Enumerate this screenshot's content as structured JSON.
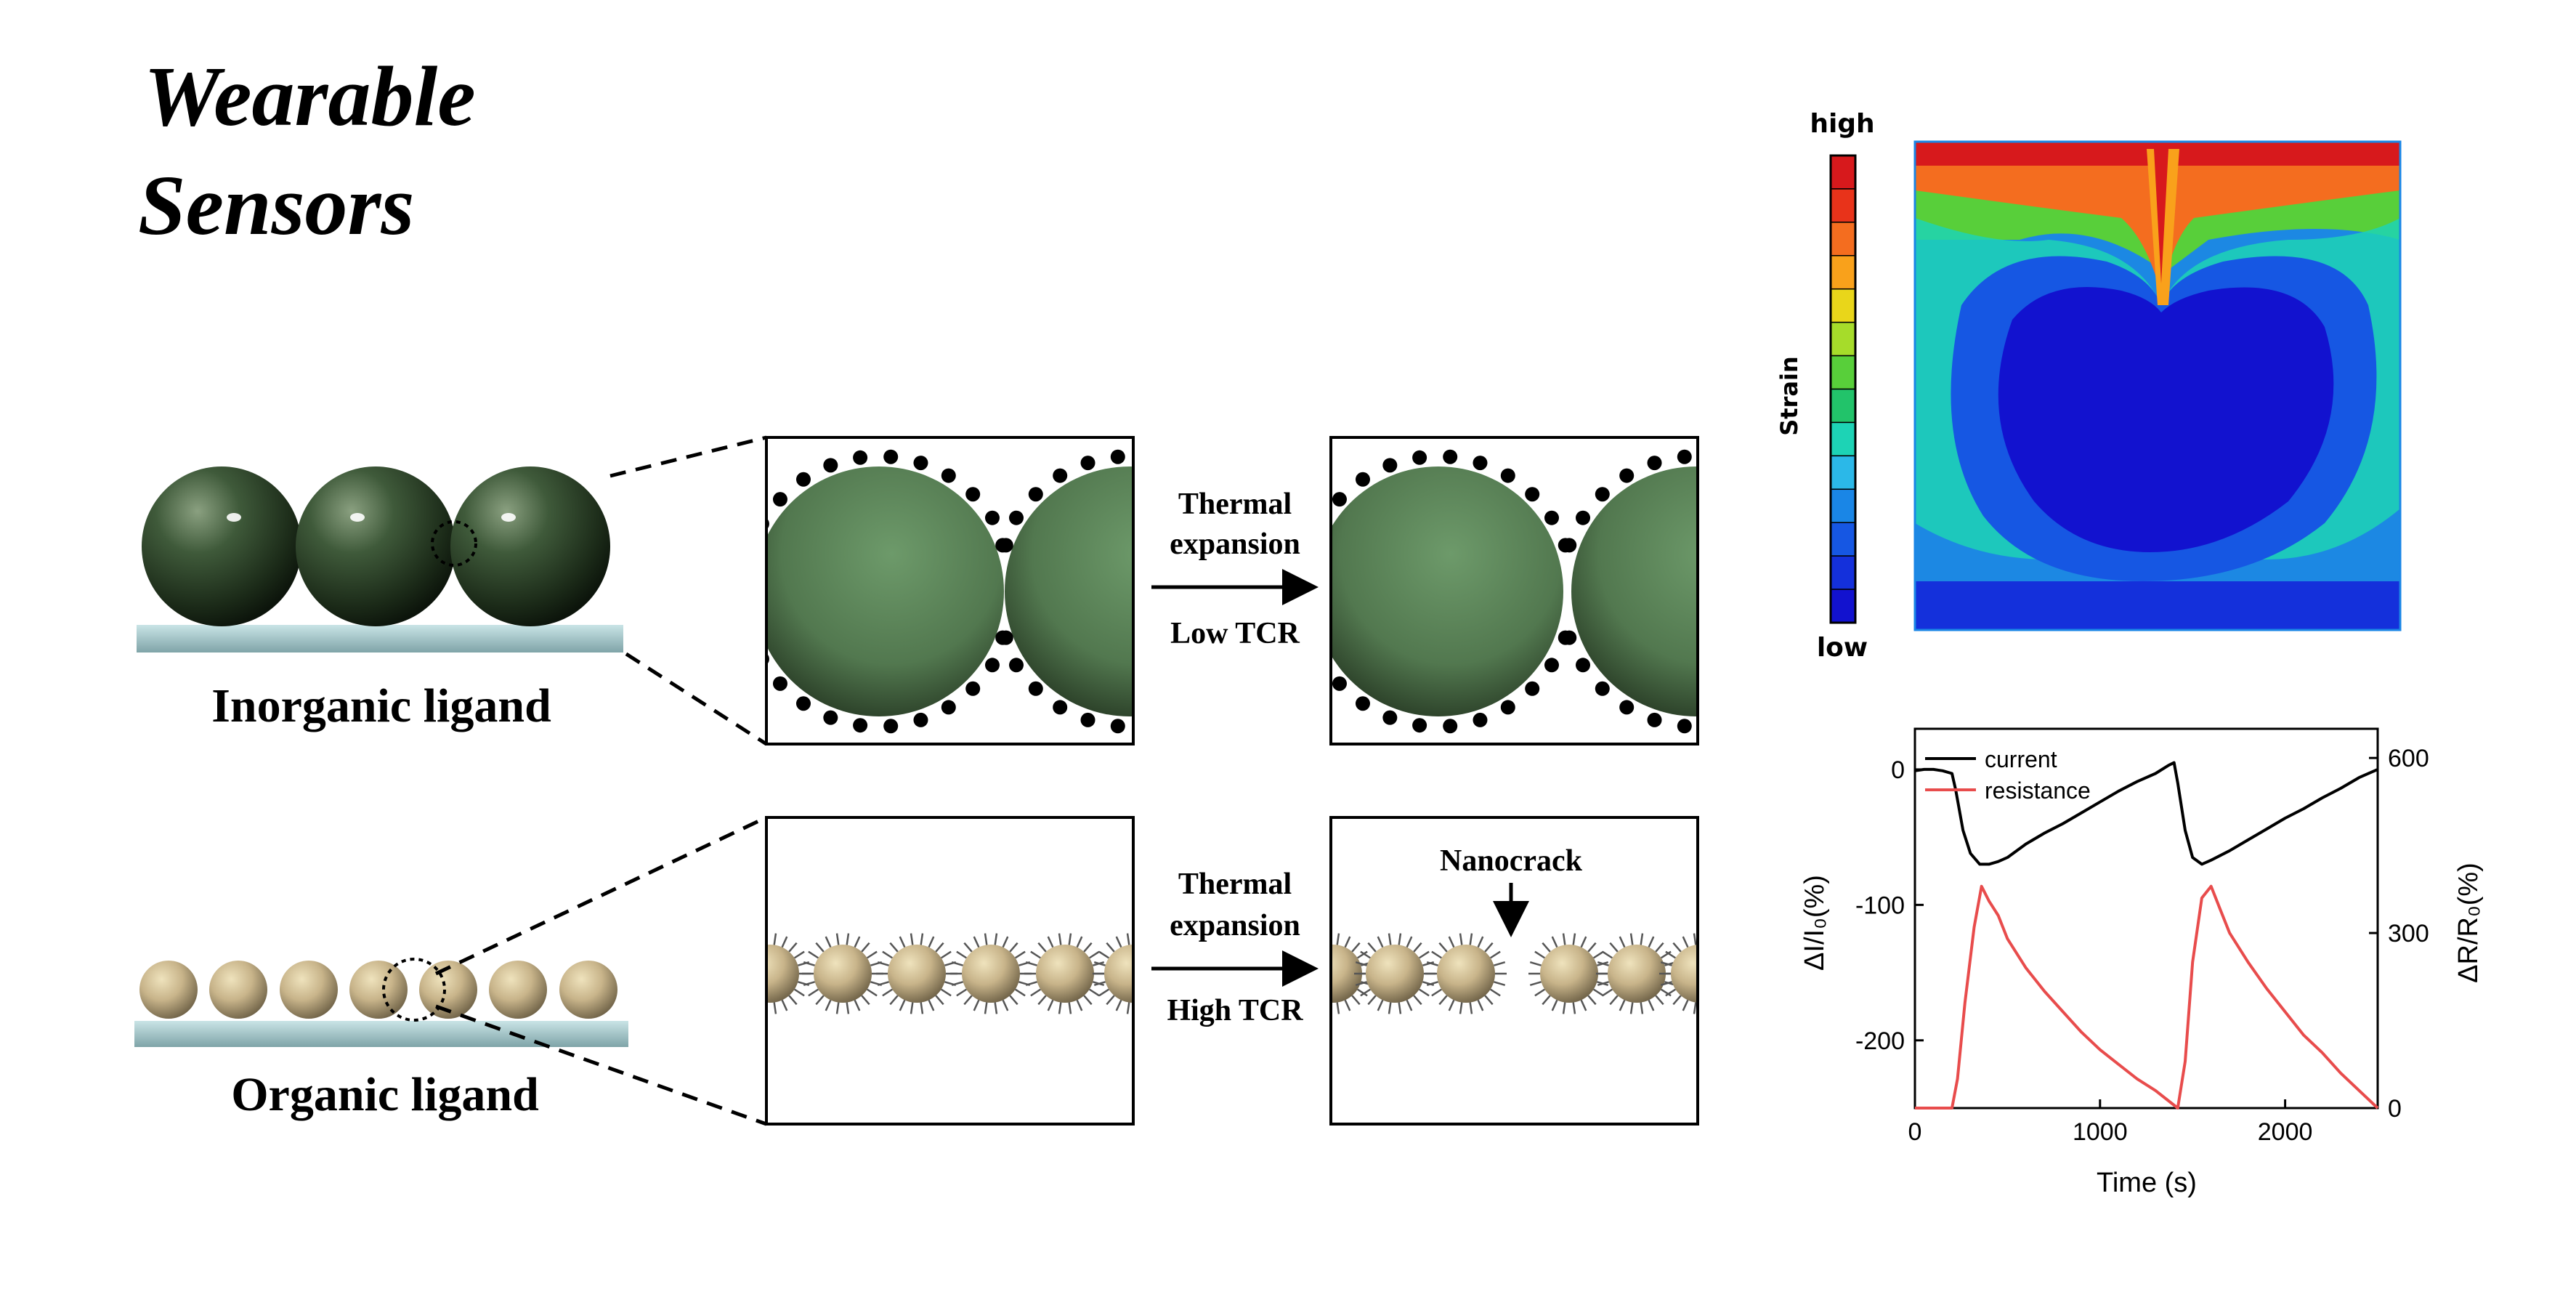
{
  "title": {
    "line1": "Wearable",
    "line2": "Sensors"
  },
  "schematic": {
    "inorganic_label": "Inorganic ligand",
    "organic_label": "Organic ligand",
    "process_top": {
      "line1": "Thermal",
      "line2": "expansion",
      "tcr": "Low TCR"
    },
    "process_bottom": {
      "line1": "Thermal",
      "line2": "expansion",
      "tcr": "High TCR"
    },
    "nanocrack_label": "Nanocrack"
  },
  "strain_map": {
    "colorbar_high": "high",
    "colorbar_low": "low",
    "colorbar_title": "Strain",
    "colorbar_colors": [
      "#d7191c",
      "#e8331a",
      "#f46d1f",
      "#f9a11b",
      "#e9d61a",
      "#a6dc2a",
      "#58cf3a",
      "#22c36a",
      "#1dd3b5",
      "#2bb8e8",
      "#1a86e6",
      "#1657e3",
      "#1430db",
      "#1212cf"
    ]
  },
  "chart_data": {
    "type": "line",
    "xlabel": "Time (s)",
    "ylabel_left": "ΔI/I₀(%)",
    "ylabel_right": "ΔR/R₀(%)",
    "xlim": [
      0,
      2500
    ],
    "ylim_left": [
      -250,
      30
    ],
    "ylim_right": [
      0,
      650
    ],
    "x_ticks": [
      "0",
      "1000",
      "2000"
    ],
    "y_ticks_left": [
      "0",
      "-100",
      "-200"
    ],
    "y_ticks_right": [
      "600",
      "300",
      "0"
    ],
    "legend_position": "top-left",
    "series": [
      {
        "name": "current",
        "color": "#000000",
        "axis": "left",
        "x": [
          0,
          50,
          100,
          150,
          200,
          220,
          260,
          300,
          350,
          400,
          450,
          500,
          600,
          700,
          800,
          900,
          1000,
          1100,
          1200,
          1300,
          1370,
          1400,
          1420,
          1460,
          1500,
          1550,
          1600,
          1700,
          1800,
          1900,
          2000,
          2100,
          2200,
          2300,
          2400,
          2500
        ],
        "y": [
          -1,
          0,
          0,
          -1,
          -3,
          -15,
          -45,
          -62,
          -70,
          -70,
          -68,
          -65,
          -55,
          -47,
          -40,
          -32,
          -24,
          -16,
          -9,
          -3,
          3,
          5,
          -10,
          -45,
          -65,
          -70,
          -67,
          -60,
          -52,
          -44,
          -36,
          -29,
          -21,
          -14,
          -6,
          0
        ]
      },
      {
        "name": "resistance",
        "color": "#e84c4c",
        "axis": "right",
        "x": [
          0,
          50,
          100,
          150,
          200,
          230,
          270,
          320,
          360,
          400,
          450,
          500,
          600,
          700,
          800,
          900,
          1000,
          1100,
          1200,
          1300,
          1380,
          1420,
          1460,
          1500,
          1550,
          1600,
          1650,
          1700,
          1800,
          1900,
          2000,
          2100,
          2200,
          2300,
          2400,
          2500
        ],
        "y": [
          0,
          0,
          0,
          0,
          0,
          50,
          180,
          310,
          380,
          355,
          330,
          290,
          240,
          200,
          165,
          130,
          100,
          75,
          50,
          30,
          10,
          0,
          80,
          250,
          360,
          380,
          340,
          300,
          250,
          205,
          165,
          125,
          95,
          60,
          30,
          0
        ]
      }
    ]
  }
}
